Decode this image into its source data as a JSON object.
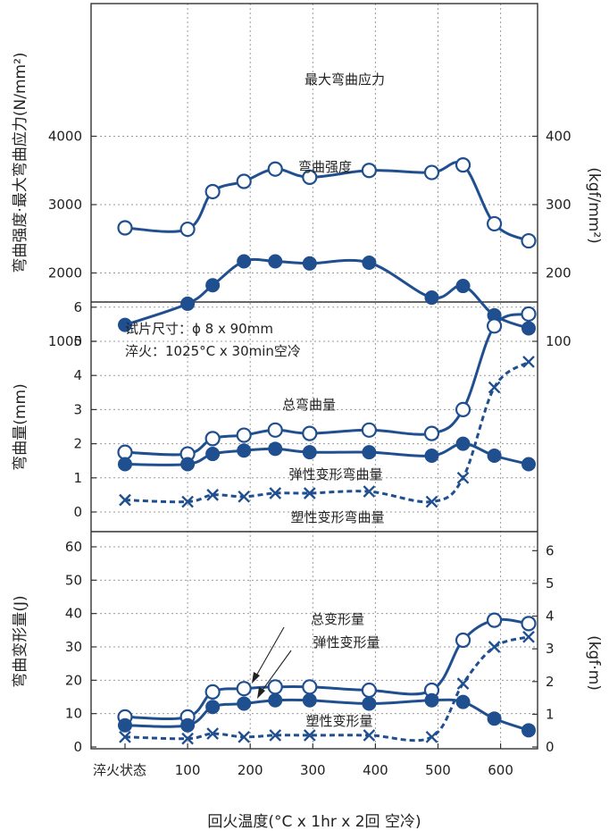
{
  "chart_data": {
    "type": "line",
    "xlabel": "回火温度(°C x 1hr x 2回 空冷)",
    "x_ticks": [
      {
        "x": 0,
        "label": "淬火状态"
      },
      {
        "x": 100,
        "label": "100"
      },
      {
        "x": 200,
        "label": "200"
      },
      {
        "x": 300,
        "label": "300"
      },
      {
        "x": 400,
        "label": "400"
      },
      {
        "x": 500,
        "label": "500"
      },
      {
        "x": 600,
        "label": "600"
      }
    ],
    "panels": [
      {
        "id": "strength",
        "ylabel": "弯曲强度·最大弯曲应力(N/mm²)",
        "ylabel_right": "(kgf/mm²)",
        "ylim": [
          0,
          4000
        ],
        "yticks": [
          1000,
          2000,
          3000,
          4000
        ],
        "yticks_right": [
          {
            "v": 1000,
            "label": "100"
          },
          {
            "v": 2000,
            "label": "200"
          },
          {
            "v": 3000,
            "label": "300"
          },
          {
            "v": 4000,
            "label": "400"
          }
        ],
        "series": [
          {
            "name": "最大弯曲应力",
            "marker": "open-circle",
            "style": "solid",
            "x": [
              0,
              100,
              140,
              190,
              240,
              295,
              390,
              490,
              540,
              590,
              645
            ],
            "y": [
              2660,
              2640,
              3190,
              3340,
              3520,
              3400,
              3500,
              3470,
              3580,
              2720,
              2470
            ]
          },
          {
            "name": "弯曲强度",
            "marker": "filled-circle",
            "style": "solid",
            "x": [
              0,
              100,
              140,
              190,
              240,
              295,
              390,
              490,
              540,
              590,
              645
            ],
            "y": [
              1240,
              1550,
              1820,
              2170,
              2170,
              2140,
              2150,
              1640,
              1810,
              1380,
              1190
            ]
          }
        ]
      },
      {
        "id": "deflection",
        "ylabel": "弯曲量(mm)",
        "ylim": [
          0,
          6
        ],
        "yticks": [
          0,
          1,
          2,
          3,
          4,
          5,
          6
        ],
        "series": [
          {
            "name": "总弯曲量",
            "marker": "open-circle",
            "style": "solid",
            "x": [
              0,
              100,
              140,
              190,
              240,
              295,
              390,
              490,
              540,
              590,
              645
            ],
            "y": [
              1.75,
              1.7,
              2.15,
              2.25,
              2.4,
              2.3,
              2.4,
              2.3,
              3.0,
              5.45,
              5.8
            ]
          },
          {
            "name": "弹性变形弯曲量",
            "marker": "filled-circle",
            "style": "solid",
            "x": [
              0,
              100,
              140,
              190,
              240,
              295,
              390,
              490,
              540,
              590,
              645
            ],
            "y": [
              1.4,
              1.4,
              1.7,
              1.8,
              1.85,
              1.75,
              1.75,
              1.65,
              2.0,
              1.65,
              1.4
            ]
          },
          {
            "name": "塑性变形弯曲量",
            "marker": "x",
            "style": "dashed",
            "x": [
              0,
              100,
              140,
              190,
              240,
              295,
              390,
              490,
              540,
              590,
              645
            ],
            "y": [
              0.35,
              0.3,
              0.5,
              0.45,
              0.55,
              0.55,
              0.6,
              0.3,
              1.0,
              3.65,
              4.4
            ]
          }
        ]
      },
      {
        "id": "energy",
        "ylabel": "弯曲变形量(J)",
        "ylabel_right": "(kgf·m)",
        "ylim": [
          0,
          65
        ],
        "yticks": [
          0,
          10,
          20,
          30,
          40,
          50,
          60
        ],
        "yticks_right": [
          {
            "v": 0,
            "label": "0"
          },
          {
            "v": 9.807,
            "label": "1"
          },
          {
            "v": 19.613,
            "label": "2"
          },
          {
            "v": 29.42,
            "label": "3"
          },
          {
            "v": 39.227,
            "label": "4"
          },
          {
            "v": 49.033,
            "label": "5"
          },
          {
            "v": 58.84,
            "label": "6"
          }
        ],
        "series": [
          {
            "name": "总变形量",
            "marker": "open-circle",
            "style": "solid",
            "x": [
              0,
              100,
              140,
              190,
              240,
              295,
              390,
              490,
              540,
              590,
              645
            ],
            "y": [
              9,
              9,
              16.5,
              17.5,
              18,
              18,
              17,
              17,
              32,
              38,
              37
            ]
          },
          {
            "name": "弹性变形量",
            "marker": "filled-circle",
            "style": "solid",
            "x": [
              0,
              100,
              140,
              190,
              240,
              295,
              390,
              490,
              540,
              590,
              645
            ],
            "y": [
              6.5,
              6.5,
              12,
              13,
              14,
              14,
              13,
              14,
              13.5,
              8.5,
              5
            ]
          },
          {
            "name": "塑性变形量",
            "marker": "x",
            "style": "dashed",
            "x": [
              0,
              100,
              140,
              190,
              240,
              295,
              390,
              490,
              540,
              590,
              645
            ],
            "y": [
              3,
              2.5,
              4,
              3,
              3.5,
              3.5,
              3.5,
              3,
              19,
              30,
              33
            ]
          }
        ]
      }
    ],
    "annotations": {
      "specimen": "试片尺寸：ϕ 8 x 90mm",
      "quench": "淬火：1025°C x 30min空冷"
    },
    "colors": {
      "line": "#1f4f8f",
      "frame": "#333333",
      "grid": "#9a9a9a"
    }
  }
}
